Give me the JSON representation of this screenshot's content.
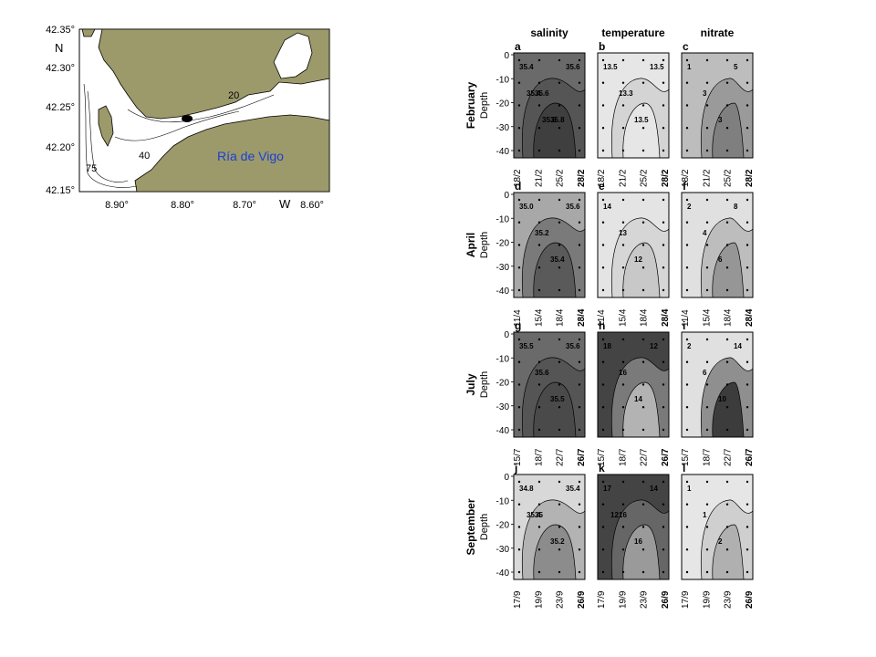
{
  "map": {
    "lat_labels": [
      "42.35°",
      "42.30°",
      "42.25°",
      "42.20°",
      "42.15°"
    ],
    "lon_labels": [
      "8.90°",
      "8.80°",
      "8.70°",
      "8.60°"
    ],
    "north_label": "N",
    "west_label": "W",
    "region_name": "Ría de Vigo",
    "depth_labels": [
      "20",
      "40",
      "75"
    ],
    "colors": {
      "land": "#9c9a6a",
      "water": "#ffffff",
      "title": "#1a3fd6",
      "station": "#000000"
    }
  },
  "figure": {
    "columns": [
      "salinity",
      "temperature",
      "nitrate"
    ],
    "rows": [
      {
        "month": "February",
        "depth_label": "Depth",
        "yticks": [
          "0",
          "-10",
          "-20",
          "-30",
          "-40"
        ],
        "dates": [
          "18/2",
          "21/2",
          "25/2",
          "28/2"
        ],
        "panels": [
          {
            "letter": "a",
            "contours": [
              "35.4",
              "35.6",
              "35.8",
              "35.6",
              "35.4",
              "35.8"
            ],
            "fills": [
              "#6a6a6a",
              "#555555",
              "#3f3f3f"
            ]
          },
          {
            "letter": "b",
            "contours": [
              "13.5",
              "13.3",
              "13.5",
              "13.5"
            ],
            "fills": [
              "#e6e6e6",
              "#d4d4d4",
              "#e6e6e6"
            ]
          },
          {
            "letter": "c",
            "contours": [
              "1",
              "3",
              "3",
              "5"
            ],
            "fills": [
              "#bdbdbd",
              "#9a9a9a",
              "#7f7f7f"
            ]
          }
        ]
      },
      {
        "month": "April",
        "depth_label": "Depth",
        "yticks": [
          "0",
          "-10",
          "-20",
          "-30",
          "-40"
        ],
        "dates": [
          "11/4",
          "15/4",
          "18/4",
          "28/4"
        ],
        "panels": [
          {
            "letter": "d",
            "contours": [
              "35.0",
              "35.2",
              "35.4",
              "35.6"
            ],
            "fills": [
              "#a8a8a8",
              "#7a7a7a",
              "#5a5a5a"
            ]
          },
          {
            "letter": "e",
            "contours": [
              "14",
              "13",
              "12"
            ],
            "fills": [
              "#e4e4e4",
              "#d6d6d6",
              "#c8c8c8"
            ]
          },
          {
            "letter": "f",
            "contours": [
              "2",
              "4",
              "6",
              "8"
            ],
            "fills": [
              "#e0e0e0",
              "#bdbdbd",
              "#969696"
            ]
          }
        ]
      },
      {
        "month": "July",
        "depth_label": "Depth",
        "yticks": [
          "0",
          "-10",
          "-20",
          "-30",
          "-40"
        ],
        "dates": [
          "15/7",
          "18/7",
          "22/7",
          "26/7"
        ],
        "panels": [
          {
            "letter": "g",
            "contours": [
              "35.5",
              "35.6",
              "35.5",
              "35.6"
            ],
            "fills": [
              "#6a6a6a",
              "#555555",
              "#4a4a4a"
            ]
          },
          {
            "letter": "h",
            "contours": [
              "18",
              "16",
              "14",
              "12"
            ],
            "fills": [
              "#444444",
              "#7a7a7a",
              "#b3b3b3"
            ]
          },
          {
            "letter": "i",
            "contours": [
              "2",
              "6",
              "10",
              "14"
            ],
            "fills": [
              "#e0e0e0",
              "#8f8f8f",
              "#3c3c3c"
            ]
          }
        ]
      },
      {
        "month": "September",
        "depth_label": "Depth",
        "yticks": [
          "0",
          "-10",
          "-20",
          "-30",
          "-40"
        ],
        "dates": [
          "17/9",
          "19/9",
          "23/9",
          "26/9"
        ],
        "panels": [
          {
            "letter": "j",
            "contours": [
              "34.8",
              "35",
              "35.2",
              "35.4",
              "35.4"
            ],
            "fills": [
              "#d8d8d8",
              "#b3b3b3",
              "#8c8c8c"
            ]
          },
          {
            "letter": "k",
            "contours": [
              "17",
              "16",
              "16",
              "14",
              "12"
            ],
            "fills": [
              "#444444",
              "#666666",
              "#9a9a9a"
            ]
          },
          {
            "letter": "l",
            "contours": [
              "1",
              "1",
              "2"
            ],
            "fills": [
              "#e6e6e6",
              "#cfcfcf",
              "#b0b0b0"
            ]
          }
        ]
      }
    ]
  }
}
